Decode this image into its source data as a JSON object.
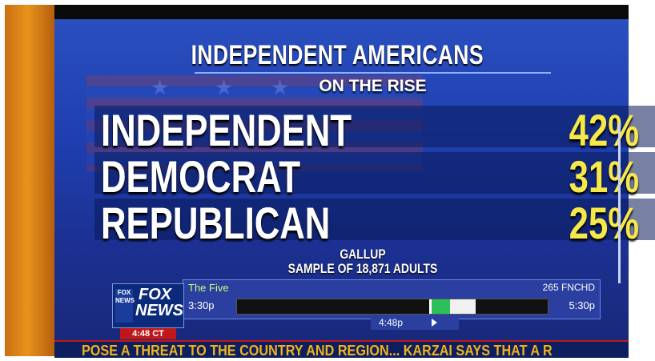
{
  "graphic": {
    "title": "INDEPENDENT AMERICANS",
    "subtitle": "ON THE RISE",
    "rows": [
      {
        "label": "INDEPENDENT",
        "value": "42%"
      },
      {
        "label": "DEMOCRAT",
        "value": "31%"
      },
      {
        "label": "REPUBLICAN",
        "value": "25%"
      }
    ],
    "source_line1": "GALLUP",
    "source_line2": "SAMPLE OF 18,871 ADULTS"
  },
  "guide": {
    "show_name": "The Five",
    "channel": "265 FNCHD",
    "start_time": "3:30p",
    "end_time": "5:30p",
    "current_time": "4:48p",
    "progress_fraction": 0.65
  },
  "logo": {
    "fox": "FOX",
    "news": "NEWS",
    "side": "FOX NEWS"
  },
  "clock": "4:48 CT",
  "ticker": "POSE A THREAT TO THE COUNTRY AND REGION... KARZAI SAYS THAT A R",
  "colors": {
    "value_yellow": "#f7e84a",
    "ticker_yellow": "#f2b21a",
    "screen_blue": "#1f3fb0",
    "bezel_orange": "#e8921c"
  }
}
